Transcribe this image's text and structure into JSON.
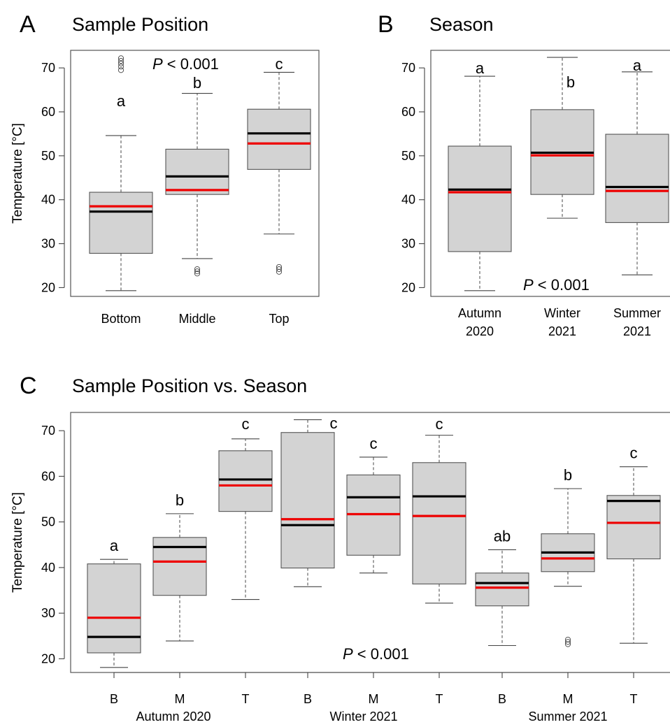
{
  "colors": {
    "box_fill": "#d3d3d3",
    "median": "#000000",
    "mean": "#ee0000",
    "frame": "#555555"
  },
  "chart_data": [
    {
      "type": "box",
      "panel_letter": "A",
      "title": "Sample Position",
      "ylabel": "Temperature [°C]",
      "ylim": [
        18,
        74
      ],
      "yticks": [
        20,
        30,
        40,
        50,
        60,
        70
      ],
      "p_label": "P < 0.001",
      "categories": [
        "Bottom",
        "Middle",
        "Top"
      ],
      "boxes": [
        {
          "label": "Bottom",
          "min": 19.3,
          "q1": 27.8,
          "median": 37.3,
          "mean": 38.5,
          "q3": 41.7,
          "max": 54.6,
          "outliers": [
            69.5,
            70.3,
            71.0,
            71.6,
            72.2
          ],
          "letter": "a"
        },
        {
          "label": "Middle",
          "min": 26.6,
          "q1": 41.2,
          "median": 45.3,
          "mean": 42.2,
          "q3": 51.5,
          "max": 64.2,
          "outliers": [
            23.2,
            23.7,
            24.2
          ],
          "letter": "b"
        },
        {
          "label": "Top",
          "min": 32.2,
          "q1": 46.9,
          "median": 55.1,
          "mean": 52.8,
          "q3": 60.6,
          "max": 69.0,
          "outliers": [
            23.6,
            24.2,
            24.7
          ],
          "letter": "c"
        }
      ]
    },
    {
      "type": "box",
      "panel_letter": "B",
      "title": "Season",
      "ylabel": "",
      "ylim": [
        18,
        74
      ],
      "yticks": [
        20,
        30,
        40,
        50,
        60,
        70
      ],
      "p_label": "P < 0.001",
      "categories": [
        "Autumn\n2020",
        "Winter\n2021",
        "Summer\n2021"
      ],
      "boxes": [
        {
          "label": "Autumn\n2020",
          "min": 19.3,
          "q1": 28.2,
          "median": 42.3,
          "mean": 41.7,
          "q3": 52.2,
          "max": 68.1,
          "outliers": [],
          "letter": "a"
        },
        {
          "label": "Winter\n2021",
          "min": 35.8,
          "q1": 41.2,
          "median": 50.7,
          "mean": 50.1,
          "q3": 60.5,
          "max": 72.4,
          "outliers": [],
          "letter": "b"
        },
        {
          "label": "Summer\n2021",
          "min": 22.9,
          "q1": 34.8,
          "median": 42.9,
          "mean": 42.0,
          "q3": 54.9,
          "max": 69.1,
          "outliers": [],
          "letter": "a"
        }
      ]
    },
    {
      "type": "box",
      "panel_letter": "C",
      "title": "Sample Position vs. Season",
      "ylabel": "Temperature [°C]",
      "ylim": [
        17,
        74
      ],
      "yticks": [
        20,
        30,
        40,
        50,
        60,
        70
      ],
      "p_label": "P < 0.001",
      "categories": [
        "B",
        "M",
        "T",
        "B",
        "M",
        "T",
        "B",
        "M",
        "T"
      ],
      "groups": [
        "Autumn 2020",
        "Winter 2021",
        "Summer 2021"
      ],
      "boxes": [
        {
          "label": "B",
          "min": 18.1,
          "q1": 21.3,
          "median": 24.8,
          "mean": 29.0,
          "q3": 40.8,
          "max": 41.8,
          "outliers": [],
          "letter": "a"
        },
        {
          "label": "M",
          "min": 23.9,
          "q1": 33.9,
          "median": 44.5,
          "mean": 41.3,
          "q3": 46.6,
          "max": 51.8,
          "outliers": [],
          "letter": "b"
        },
        {
          "label": "T",
          "min": 33.0,
          "q1": 52.3,
          "median": 59.3,
          "mean": 58.0,
          "q3": 65.6,
          "max": 68.2,
          "outliers": [],
          "letter": "c"
        },
        {
          "label": "B",
          "min": 35.8,
          "q1": 39.9,
          "median": 49.3,
          "mean": 50.6,
          "q3": 69.6,
          "max": 72.4,
          "outliers": [],
          "letter": "c"
        },
        {
          "label": "M",
          "min": 38.8,
          "q1": 42.7,
          "median": 55.4,
          "mean": 51.7,
          "q3": 60.3,
          "max": 64.2,
          "outliers": [],
          "letter": "c"
        },
        {
          "label": "T",
          "min": 32.2,
          "q1": 36.4,
          "median": 55.6,
          "mean": 51.3,
          "q3": 63.0,
          "max": 69.0,
          "outliers": [],
          "letter": "c"
        },
        {
          "label": "B",
          "min": 22.9,
          "q1": 31.6,
          "median": 36.6,
          "mean": 35.6,
          "q3": 38.8,
          "max": 43.9,
          "outliers": [],
          "letter": "ab"
        },
        {
          "label": "M",
          "min": 35.9,
          "q1": 39.1,
          "median": 43.3,
          "mean": 42.0,
          "q3": 47.4,
          "max": 57.3,
          "outliers": [
            23.2,
            23.7,
            24.2
          ],
          "letter": "b"
        },
        {
          "label": "T",
          "min": 23.4,
          "q1": 41.9,
          "median": 54.6,
          "mean": 49.8,
          "q3": 55.8,
          "max": 62.1,
          "outliers": [],
          "letter": "c"
        }
      ]
    }
  ]
}
